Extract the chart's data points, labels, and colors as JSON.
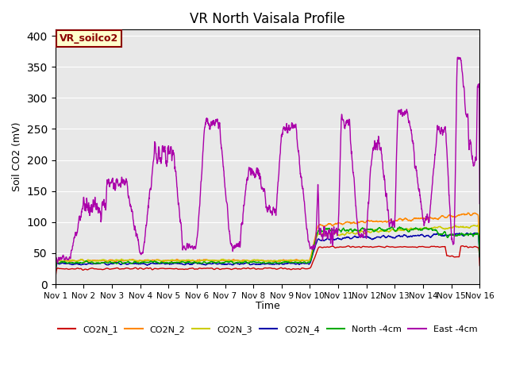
{
  "title": "VR North Vaisala Profile",
  "ylabel": "Soil CO2 (mV)",
  "xlabel": "Time",
  "annotation_text": "VR_soilco2",
  "annotation_bg": "#FFFFCC",
  "annotation_border": "#8B0000",
  "plot_bg_color": "#E8E8E8",
  "fig_bg_color": "#FFFFFF",
  "ylim": [
    0,
    410
  ],
  "yticks": [
    0,
    50,
    100,
    150,
    200,
    250,
    300,
    350,
    400
  ],
  "xtick_labels": [
    "Nov 1",
    "Nov 2",
    "Nov 3",
    "Nov 4",
    "Nov 5",
    "Nov 6",
    "Nov 7",
    "Nov 8",
    "Nov 9",
    "Nov 10",
    "Nov 11",
    "Nov 12",
    "Nov 13",
    "Nov 14",
    "Nov 15",
    "Nov 16"
  ],
  "series_colors": {
    "CO2N_1": "#CC0000",
    "CO2N_2": "#FF8800",
    "CO2N_3": "#CCCC00",
    "CO2N_4": "#0000AA",
    "North_4cm": "#00AA00",
    "East_4cm": "#AA00AA"
  },
  "legend_labels": [
    "CO2N_1",
    "CO2N_2",
    "CO2N_3",
    "CO2N_4",
    "North -4cm",
    "East -4cm"
  ],
  "n_points": 2000
}
